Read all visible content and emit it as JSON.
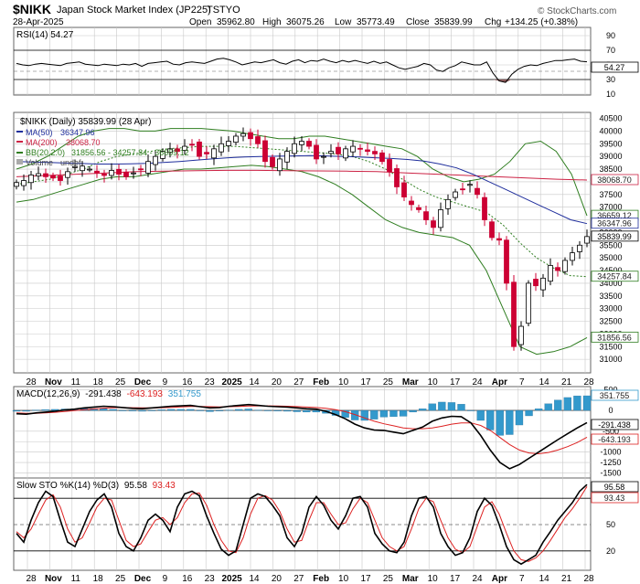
{
  "header": {
    "symbol": "$NIKK",
    "name": "Japan Stock Market Index (JP225)",
    "exchange": "TSTYO",
    "date": "28-Apr-2025",
    "open_label": "Open",
    "open": "35962.80",
    "high_label": "High",
    "high": "36075.26",
    "low_label": "Low",
    "low": "35773.49",
    "close_label": "Close",
    "close": "35839.99",
    "chg_label": "Chg",
    "chg": "+134.25 (+0.38%)",
    "watermark": "© StockCharts.com"
  },
  "colors": {
    "up": "#000000",
    "down": "#cc0033",
    "ma50": "#1f2e9c",
    "ma200": "#cc2244",
    "bb": "#2e7d1f",
    "bb_mid": "#2e7d1f",
    "macd_hist": "#3399cc",
    "rsi_fill": "#8b5a5a",
    "grid": "#c8c8c8",
    "sto_k": "#000000",
    "sto_d": "#dd2222"
  },
  "chart_data": [
    {
      "type": "line",
      "panel": "rsi",
      "title": "RSI(14) 54.27",
      "label": "RSI(14)",
      "value": "54.27",
      "last_tag": "54.27",
      "ylim": [
        10,
        100
      ],
      "ticks": [
        "90",
        "70",
        "50",
        "30",
        "10"
      ],
      "levels": [
        70,
        30
      ],
      "series": [
        {
          "name": "RSI",
          "values": [
            52,
            50,
            49,
            51,
            52,
            51,
            50,
            49,
            52,
            53,
            54,
            51,
            50,
            49,
            51,
            50,
            49,
            51,
            50,
            52,
            48,
            52,
            53,
            54,
            55,
            51,
            50,
            53,
            54,
            53,
            52,
            55,
            58,
            59,
            57,
            54,
            50,
            52,
            54,
            53,
            55,
            57,
            53,
            51,
            55,
            57,
            53,
            56,
            55,
            58,
            55,
            53,
            56,
            54,
            56,
            54,
            52,
            55,
            52,
            54,
            50,
            46,
            44,
            46,
            48,
            52,
            50,
            43,
            41,
            46,
            49,
            54,
            52,
            50,
            50,
            54,
            39,
            28,
            26,
            37,
            44,
            48,
            50,
            49,
            52,
            54,
            56,
            56,
            57,
            58,
            55,
            54.27
          ]
        }
      ]
    },
    {
      "type": "candlestick",
      "panel": "price",
      "title": "$NIKK (Daily) 35839.99 (28 Apr)",
      "legend": [
        {
          "name": "MA(50)",
          "value": "36347.96"
        },
        {
          "name": "MA(200)",
          "value": "38068.70"
        },
        {
          "name": "BB(20,2.0)",
          "value": "31856.56 - 34257.84 - 36659.12"
        },
        {
          "name": "Volume",
          "value": "undef"
        }
      ],
      "ylim": [
        30500,
        40700
      ],
      "ticks": [
        "40500",
        "40000",
        "39500",
        "39000",
        "38500",
        "38000",
        "37500",
        "37000",
        "36500",
        "36000",
        "35500",
        "35000",
        "34500",
        "34000",
        "33500",
        "33000",
        "32500",
        "32000",
        "31500",
        "31000"
      ],
      "x_ticks": [
        "28",
        "Nov",
        "11",
        "18",
        "25",
        "Dec",
        "9",
        "16",
        "23",
        "2025",
        "14",
        "20",
        "27",
        "Feb",
        "10",
        "17",
        "25",
        "Mar",
        "10",
        "17",
        "24",
        "Apr",
        "7",
        "14",
        "21",
        "28"
      ],
      "price_tags": [
        "36659.12",
        "36347.96",
        "35839.99",
        "38068.70",
        "34257.84",
        "31856.56"
      ],
      "closes": [
        37970,
        38050,
        38270,
        38320,
        38200,
        38150,
        38050,
        38400,
        38600,
        38620,
        38500,
        38350,
        38250,
        38450,
        38300,
        38200,
        38350,
        38500,
        38800,
        39000,
        39200,
        39300,
        39200,
        39400,
        39450,
        39000,
        39100,
        39300,
        39500,
        39600,
        39800,
        39900,
        39700,
        39500,
        38800,
        38600,
        38900,
        39200,
        39500,
        39600,
        39400,
        38900,
        39000,
        39200,
        39100,
        39300,
        39400,
        39300,
        39200,
        39100,
        38800,
        38400,
        37800,
        37400,
        37100,
        36900,
        36500,
        36200,
        36900,
        37300,
        37600,
        37700,
        37900,
        37500,
        36500,
        35800,
        35700,
        34000,
        31500,
        32300,
        34000,
        33900,
        34200,
        34700,
        34500,
        34900,
        35200,
        35500,
        35839.99
      ],
      "ma50": [
        38800,
        38780,
        38760,
        38740,
        38720,
        38700,
        38700,
        38710,
        38730,
        38760,
        38800,
        38850,
        38900,
        38950,
        38980,
        39000,
        39010,
        39020,
        39030,
        39020,
        39000,
        38980,
        38950,
        38920,
        38880,
        38820,
        38700,
        38550,
        38300,
        38000,
        37700,
        37400,
        37100,
        36800,
        36500,
        36347.96
      ],
      "ma200": [
        38200,
        38250,
        38300,
        38350,
        38400,
        38420,
        38440,
        38450,
        38450,
        38440,
        38430,
        38420,
        38400,
        38350,
        38300,
        38250,
        38200,
        38150,
        38100,
        38068.7
      ],
      "bb_upper": [
        38500,
        38700,
        39000,
        39400,
        39800,
        40000,
        40100,
        40100,
        40000,
        40000,
        40100,
        40100,
        40100,
        40050,
        40000,
        39900,
        39800,
        39700,
        39700,
        39800,
        39800,
        39700,
        39600,
        39500,
        39400,
        39300,
        39000,
        38500,
        38200,
        38000,
        38100,
        38300,
        38800,
        39500,
        39600,
        39200,
        38300,
        36659.12
      ],
      "bb_mid": [
        37900,
        38000,
        38100,
        38300,
        38500,
        38800,
        39000,
        39100,
        39200,
        39300,
        39350,
        39400,
        39400,
        39400,
        39350,
        39300,
        39250,
        39200,
        39150,
        39100,
        39000,
        38800,
        38500,
        38100,
        37700,
        37400,
        37200,
        37000,
        36800,
        36300,
        35600,
        35000,
        34600,
        34300,
        34257.84
      ],
      "bb_lower": [
        37200,
        37300,
        37500,
        37700,
        37900,
        38100,
        38200,
        38200,
        38300,
        38400,
        38500,
        38500,
        38550,
        38600,
        38650,
        38600,
        38500,
        38400,
        38200,
        37900,
        37500,
        37000,
        36500,
        36200,
        36000,
        35900,
        35800,
        35500,
        34500,
        33000,
        31500,
        31200,
        31300,
        31500,
        31856.56
      ]
    },
    {
      "type": "line",
      "panel": "macd",
      "title": "MACD(12,26,9) -291.438, -643.193, 351.755",
      "legend": [
        "MACD(12,26,9)",
        "-291.438",
        "-643.193",
        "351.755"
      ],
      "ylim": [
        -1600,
        550
      ],
      "ticks": [
        "500",
        "0",
        "-500",
        "-750",
        "-1000",
        "-1250",
        "-1500"
      ],
      "tags": [
        "351.755",
        "-291.438",
        "-643.193"
      ],
      "series": [
        {
          "name": "MACD",
          "values": [
            -80,
            -90,
            -60,
            -40,
            -20,
            10,
            30,
            60,
            80,
            100,
            90,
            70,
            50,
            40,
            60,
            80,
            100,
            110,
            120,
            90,
            60,
            70,
            100,
            120,
            140,
            120,
            100,
            90,
            80,
            60,
            40,
            30,
            -20,
            -100,
            -200,
            -330,
            -420,
            -470,
            -480,
            -520,
            -560,
            -480,
            -400,
            -260,
            -180,
            -140,
            -150,
            -300,
            -600,
            -950,
            -1250,
            -1400,
            -1300,
            -1150,
            -1000,
            -850,
            -700,
            -560,
            -420,
            -291.438
          ]
        },
        {
          "name": "Signal",
          "values": [
            -60,
            -70,
            -70,
            -60,
            -45,
            -25,
            -5,
            15,
            35,
            55,
            65,
            70,
            65,
            60,
            60,
            65,
            75,
            85,
            95,
            95,
            90,
            85,
            90,
            95,
            105,
            110,
            108,
            105,
            100,
            92,
            80,
            70,
            50,
            20,
            -30,
            -100,
            -180,
            -260,
            -320,
            -370,
            -420,
            -440,
            -440,
            -420,
            -380,
            -330,
            -300,
            -300,
            -360,
            -480,
            -650,
            -820,
            -950,
            -1020,
            -1040,
            -1010,
            -950,
            -870,
            -770,
            -643.193
          ]
        },
        {
          "name": "Histogram",
          "values": [
            -20,
            -20,
            10,
            20,
            25,
            35,
            35,
            45,
            45,
            45,
            25,
            0,
            -15,
            -20,
            0,
            15,
            25,
            25,
            25,
            -5,
            -30,
            -15,
            10,
            25,
            35,
            10,
            -8,
            -15,
            -20,
            -32,
            -40,
            -40,
            -70,
            -120,
            -170,
            -230,
            -240,
            -210,
            -160,
            -150,
            -140,
            -40,
            40,
            160,
            200,
            190,
            150,
            0,
            -240,
            -470,
            -600,
            -580,
            -350,
            -130,
            40,
            160,
            250,
            310,
            350,
            351.755
          ]
        }
      ]
    },
    {
      "type": "line",
      "panel": "stochastic",
      "title": "Slow STO %K(14) %D(3) 95.58, 93.43",
      "legend": [
        "Slow STO %K(14) %D(3)",
        "95.58",
        "93.43"
      ],
      "ylim": [
        0,
        100
      ],
      "ticks": [
        "80",
        "50",
        "20"
      ],
      "tags": [
        "95.58",
        "93.43"
      ],
      "series": [
        {
          "name": "%K",
          "values": [
            40,
            30,
            55,
            75,
            88,
            82,
            55,
            30,
            25,
            45,
            65,
            78,
            85,
            70,
            40,
            25,
            20,
            35,
            55,
            62,
            55,
            42,
            70,
            85,
            88,
            83,
            60,
            40,
            22,
            15,
            20,
            50,
            80,
            85,
            82,
            72,
            60,
            35,
            25,
            40,
            70,
            82,
            72,
            55,
            45,
            60,
            80,
            82,
            70,
            40,
            28,
            20,
            18,
            30,
            60,
            80,
            82,
            70,
            40,
            25,
            15,
            18,
            35,
            65,
            80,
            72,
            50,
            25,
            10,
            5,
            10,
            15,
            30,
            42,
            55,
            65,
            75,
            88,
            95.58
          ]
        },
        {
          "name": "%D",
          "values": [
            42,
            35,
            45,
            62,
            78,
            84,
            70,
            45,
            30,
            35,
            52,
            70,
            80,
            78,
            55,
            32,
            25,
            28,
            42,
            55,
            58,
            50,
            58,
            75,
            85,
            86,
            72,
            50,
            32,
            20,
            18,
            35,
            62,
            80,
            83,
            78,
            65,
            45,
            30,
            32,
            55,
            75,
            75,
            62,
            50,
            52,
            68,
            80,
            75,
            55,
            35,
            25,
            20,
            25,
            45,
            68,
            80,
            76,
            55,
            35,
            22,
            18,
            25,
            48,
            70,
            76,
            62,
            40,
            20,
            10,
            8,
            12,
            20,
            32,
            45,
            58,
            68,
            80,
            93.43
          ]
        }
      ]
    }
  ]
}
